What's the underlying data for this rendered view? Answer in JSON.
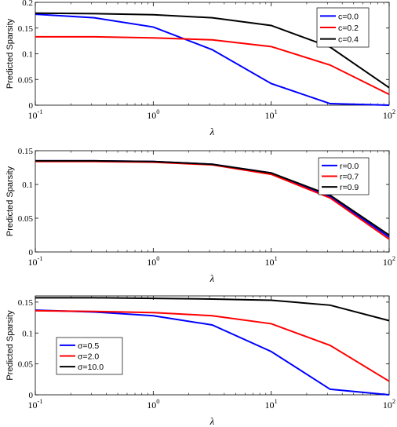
{
  "chart_data": [
    {
      "type": "line",
      "xlabel": "λ",
      "ylabel": "Predicted Sparsity",
      "xscale": "log",
      "xlim": [
        0.1,
        100
      ],
      "ylim": [
        0,
        0.2
      ],
      "xticks": [
        0.1,
        1,
        10,
        100
      ],
      "xtick_labels": [
        {
          "base": "10",
          "exp": "-1"
        },
        {
          "base": "10",
          "exp": "0"
        },
        {
          "base": "10",
          "exp": "1"
        },
        {
          "base": "10",
          "exp": "2"
        }
      ],
      "yticks": [
        0,
        0.05,
        0.1,
        0.15,
        0.2
      ],
      "ytick_labels": [
        "0",
        "0.05",
        "0.1",
        "0.15",
        "0.2"
      ],
      "grid": false,
      "legend_position": "top-right",
      "x": [
        0.1,
        0.316,
        1,
        3.16,
        10,
        31.6,
        100
      ],
      "series": [
        {
          "name": "c=0.0",
          "color": "#0000ff",
          "values": [
            0.177,
            0.17,
            0.152,
            0.108,
            0.042,
            0.003,
            0.0
          ]
        },
        {
          "name": "c=0.2",
          "color": "#ff0000",
          "values": [
            0.133,
            0.133,
            0.131,
            0.127,
            0.114,
            0.078,
            0.021
          ]
        },
        {
          "name": "c=0.4",
          "color": "#000000",
          "values": [
            0.179,
            0.178,
            0.176,
            0.17,
            0.155,
            0.113,
            0.034
          ]
        }
      ]
    },
    {
      "type": "line",
      "xlabel": "λ",
      "ylabel": "Predicted Sparsity",
      "xscale": "log",
      "xlim": [
        0.1,
        100
      ],
      "ylim": [
        0,
        0.15
      ],
      "xticks": [
        0.1,
        1,
        10,
        100
      ],
      "xtick_labels": [
        {
          "base": "10",
          "exp": "-1"
        },
        {
          "base": "10",
          "exp": "0"
        },
        {
          "base": "10",
          "exp": "1"
        },
        {
          "base": "10",
          "exp": "2"
        }
      ],
      "yticks": [
        0,
        0.05,
        0.1,
        0.15
      ],
      "ytick_labels": [
        "0",
        "0.05",
        "0.1",
        "0.15"
      ],
      "grid": false,
      "legend_position": "top-right",
      "x": [
        0.1,
        0.316,
        1,
        3.16,
        10,
        31.6,
        100
      ],
      "series": [
        {
          "name": "r=0.0",
          "color": "#0000ff",
          "values": [
            0.135,
            0.135,
            0.134,
            0.13,
            0.117,
            0.082,
            0.022
          ]
        },
        {
          "name": "r=0.7",
          "color": "#ff0000",
          "values": [
            0.134,
            0.134,
            0.133,
            0.129,
            0.115,
            0.08,
            0.019
          ]
        },
        {
          "name": "r=0.9",
          "color": "#000000",
          "values": [
            0.135,
            0.135,
            0.134,
            0.13,
            0.117,
            0.084,
            0.025
          ]
        }
      ]
    },
    {
      "type": "line",
      "xlabel": "λ",
      "ylabel": "Predicted Sparsity",
      "xscale": "log",
      "xlim": [
        0.1,
        100
      ],
      "ylim": [
        0,
        0.16
      ],
      "xticks": [
        0.1,
        1,
        10,
        100
      ],
      "xtick_labels": [
        {
          "base": "10",
          "exp": "-1"
        },
        {
          "base": "10",
          "exp": "0"
        },
        {
          "base": "10",
          "exp": "1"
        },
        {
          "base": "10",
          "exp": "2"
        }
      ],
      "yticks": [
        0,
        0.05,
        0.1,
        0.15
      ],
      "ytick_labels": [
        "0",
        "0.05",
        "0.1",
        "0.15"
      ],
      "grid": false,
      "legend_position": "bottom-left",
      "x": [
        0.1,
        0.316,
        1,
        3.16,
        10,
        31.6,
        100
      ],
      "series": [
        {
          "name": "σ=0.5",
          "color": "#0000ff",
          "values": [
            0.137,
            0.134,
            0.128,
            0.113,
            0.07,
            0.009,
            0.0
          ]
        },
        {
          "name": "σ=2.0",
          "color": "#ff0000",
          "values": [
            0.136,
            0.135,
            0.133,
            0.128,
            0.115,
            0.08,
            0.022
          ]
        },
        {
          "name": "σ=10.0",
          "color": "#000000",
          "values": [
            0.157,
            0.157,
            0.156,
            0.155,
            0.153,
            0.145,
            0.12
          ]
        }
      ]
    }
  ]
}
